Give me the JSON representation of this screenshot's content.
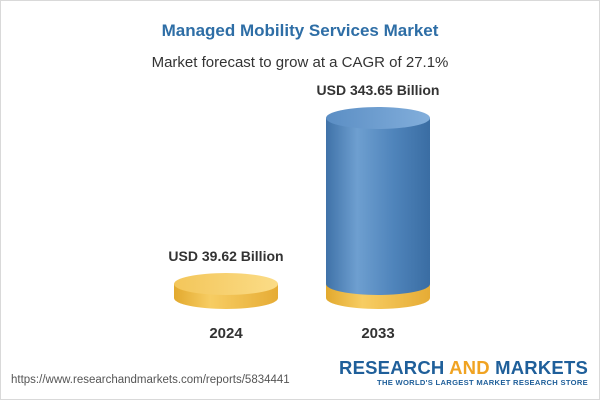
{
  "chart_data": {
    "type": "bar",
    "title": "Managed Mobility Services Market",
    "subtitle": "Market forecast to grow at a CAGR of 27.1%",
    "categories": [
      "2024",
      "2033"
    ],
    "values": [
      39.62,
      343.65
    ],
    "value_labels": [
      "USD 39.62 Billion",
      "USD 343.65 Billion"
    ],
    "unit": "USD Billion",
    "style": "3d-cylinder",
    "grid": false,
    "legend": "none",
    "colors": {
      "base_cylinder": "#f4c24a",
      "growth_cylinder": "#4a7fb5",
      "title": "#2e6ea6"
    }
  },
  "footer": {
    "url": "https://www.researchandmarkets.com/reports/5834441",
    "brand_part1": "RESEARCH ",
    "brand_part2": "AND",
    "brand_part3": " MARKETS",
    "tagline": "THE WORLD'S LARGEST MARKET RESEARCH STORE"
  }
}
